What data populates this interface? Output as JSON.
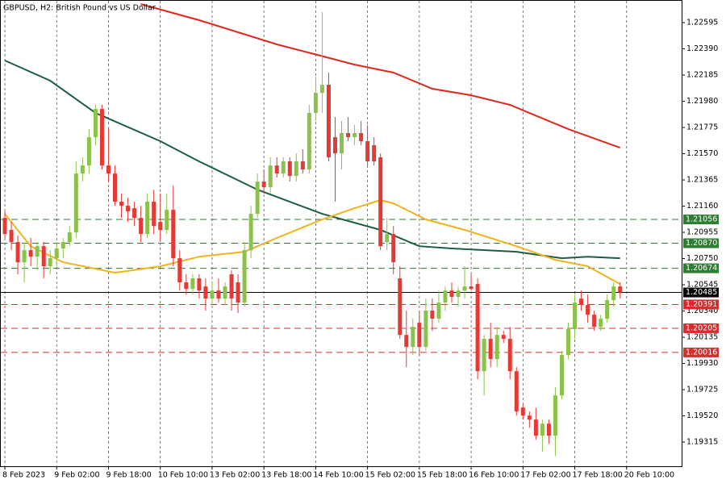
{
  "chart_data": {
    "type": "candlestick",
    "title": "GBPUSD, H2:  British Pound vs US Dollar",
    "ylim": [
      1.19126,
      1.22772
    ],
    "xlim": [
      -0.75,
      104.5
    ],
    "yticks": [
      1.22595,
      {
        "value": 1.2239,
        "label": "1.22390"
      },
      1.22185,
      {
        "value": 1.2198,
        "label": "1.21980"
      },
      1.21775,
      {
        "value": 1.2157,
        "label": "1.21570"
      },
      1.21365,
      {
        "value": 1.2116,
        "label": "1.21160"
      },
      1.20955,
      {
        "value": 1.2075,
        "label": "1.20750"
      },
      1.20545,
      {
        "value": 1.2034,
        "label": "1.20340"
      },
      1.20135,
      {
        "value": 1.1993,
        "label": "1.19930"
      },
      1.19725,
      {
        "value": 1.1952,
        "label": "1.19520"
      },
      1.19315
    ],
    "xticks": [
      {
        "value": 0,
        "label": "8 Feb 2023"
      },
      {
        "value": 8,
        "label": "9 Feb 02:00"
      },
      {
        "value": 16,
        "label": "9 Feb 18:00"
      },
      {
        "value": 24,
        "label": "10 Feb 10:00"
      },
      {
        "value": 32,
        "label": "13 Feb 02:00"
      },
      {
        "value": 40,
        "label": "13 Feb 18:00"
      },
      {
        "value": 48,
        "label": "14 Feb 10:00"
      },
      {
        "value": 56,
        "label": "15 Feb 02:00"
      },
      {
        "value": 64,
        "label": "15 Feb 18:00"
      },
      {
        "value": 72,
        "label": "16 Feb 10:00"
      },
      {
        "value": 80,
        "label": "17 Feb 02:00"
      },
      {
        "value": 88,
        "label": "17 Feb 18:00"
      },
      {
        "value": 96,
        "label": "20 Feb 10:00"
      }
    ],
    "grid": true,
    "up_color": "#8bc34a",
    "down_color": "#e53935",
    "open": [
      1.21068,
      1.20974,
      1.20879,
      1.20721,
      1.20816,
      1.20765,
      1.20847,
      1.2069,
      1.20753,
      1.20829,
      1.20879,
      1.20955,
      1.21415,
      1.21478,
      1.21699,
      1.2192,
      1.21478,
      1.21415,
      1.21195,
      1.21163,
      1.21144,
      1.21068,
      1.20942,
      1.21195,
      1.21037,
      1.20974,
      1.21131,
      1.20753,
      1.20564,
      1.20513,
      1.20595,
      1.20532,
      1.20437,
      1.205,
      1.20437,
      1.20627,
      1.20564,
      1.20406,
      1.20816,
      1.211,
      1.21352,
      1.21308,
      1.21478,
      1.21415,
      1.2151,
      1.21396,
      1.2151,
      1.21447,
      1.21889,
      1.22046,
      1.22109,
      1.21699,
      1.21573,
      1.21731,
      1.21699,
      1.21731,
      1.21668,
      1.21636,
      1.21542,
      1.20879,
      1.20942,
      1.20595,
      1.20153,
      1.20059,
      1.20248,
      1.20059,
      1.20343,
      1.2028,
      1.20406,
      1.205,
      1.2045,
      1.205,
      1.20532,
      1.20551,
      1.19869,
      1.20122,
      1.19964,
      1.20153,
      1.20122,
      1.19869,
      1.19585,
      1.19522,
      1.19491,
      1.19365,
      1.19459,
      1.19365,
      1.1968,
      1.19996,
      1.20198,
      1.20437,
      1.20387,
      1.20311,
      1.20216,
      1.2028,
      1.20425,
      1.20532
    ],
    "high": [
      1.21119,
      1.21037,
      1.2093,
      1.20879,
      1.20911,
      1.20879,
      1.20879,
      1.20816,
      1.20879,
      1.20911,
      1.21005,
      1.2151,
      1.21542,
      1.21762,
      1.21952,
      1.21952,
      1.21762,
      1.21478,
      1.21258,
      1.21226,
      1.21195,
      1.21163,
      1.21258,
      1.21289,
      1.21258,
      1.21258,
      1.21321,
      1.20816,
      1.20627,
      1.20627,
      1.20627,
      1.20595,
      1.20564,
      1.20595,
      1.20564,
      1.20658,
      1.20627,
      1.20879,
      1.21163,
      1.21415,
      1.21447,
      1.21542,
      1.21542,
      1.21542,
      1.21542,
      1.21573,
      1.21605,
      1.21952,
      1.22173,
      1.22677,
      1.22204,
      1.21857,
      1.21826,
      1.21857,
      1.21794,
      1.21826,
      1.21794,
      1.21699,
      1.21573,
      1.21068,
      1.21005,
      1.2069,
      1.20343,
      1.2028,
      1.20343,
      1.20437,
      1.20437,
      1.205,
      1.20532,
      1.20564,
      1.20532,
      1.2069,
      1.20627,
      1.20595,
      1.20153,
      1.20248,
      1.20216,
      1.20185,
      1.20216,
      1.19901,
      1.19617,
      1.19554,
      1.19585,
      1.19491,
      1.19491,
      1.19743,
      1.20027,
      1.20248,
      1.20469,
      1.205,
      1.20469,
      1.20343,
      1.20311,
      1.20469,
      1.20564,
      1.20564
    ],
    "low": [
      1.20911,
      1.20816,
      1.20627,
      1.20564,
      1.2069,
      1.20658,
      1.20595,
      1.20627,
      1.2069,
      1.20753,
      1.20847,
      1.20911,
      1.21352,
      1.21415,
      1.21636,
      1.21447,
      1.21352,
      1.21163,
      1.21068,
      1.21037,
      1.21005,
      1.20879,
      1.20911,
      1.20942,
      1.20879,
      1.20942,
      1.2069,
      1.205,
      1.20469,
      1.20469,
      1.20437,
      1.20343,
      1.20387,
      1.20406,
      1.20387,
      1.20343,
      1.20324,
      1.20374,
      1.20753,
      1.21068,
      1.21258,
      1.21258,
      1.21384,
      1.21384,
      1.21352,
      1.21352,
      1.21415,
      1.21415,
      1.21826,
      1.21889,
      1.2151,
      1.21195,
      1.21447,
      1.21668,
      1.21636,
      1.21636,
      1.21478,
      1.21478,
      1.20816,
      1.20816,
      1.20627,
      1.20122,
      1.19901,
      1.19996,
      1.19996,
      1.20027,
      1.20185,
      1.20248,
      1.20343,
      1.20406,
      1.20374,
      1.20437,
      1.205,
      1.19806,
      1.1968,
      1.19901,
      1.19901,
      1.2009,
      1.19806,
      1.19522,
      1.19491,
      1.19428,
      1.19333,
      1.19238,
      1.19302,
      1.19207,
      1.19649,
      1.19964,
      1.20122,
      1.20343,
      1.20248,
      1.20185,
      1.20185,
      1.20248,
      1.20374,
      1.20437
    ],
    "close": [
      1.20942,
      1.20879,
      1.20721,
      1.20816,
      1.20765,
      1.20847,
      1.2069,
      1.20753,
      1.20829,
      1.20879,
      1.20955,
      1.21415,
      1.21478,
      1.21699,
      1.2192,
      1.21478,
      1.21415,
      1.21195,
      1.21163,
      1.21119,
      1.21068,
      1.20942,
      1.21195,
      1.21005,
      1.20974,
      1.21131,
      1.20753,
      1.20564,
      1.20513,
      1.20595,
      1.205,
      1.20437,
      1.205,
      1.20437,
      1.20532,
      1.20437,
      1.20406,
      1.20816,
      1.211,
      1.21352,
      1.21308,
      1.21478,
      1.21415,
      1.2151,
      1.21396,
      1.2151,
      1.21447,
      1.21889,
      1.22046,
      1.22109,
      1.21542,
      1.21573,
      1.21731,
      1.21699,
      1.21731,
      1.21668,
      1.2151,
      1.2151,
      1.20847,
      1.20942,
      1.20721,
      1.20153,
      1.20059,
      1.20216,
      1.20059,
      1.20343,
      1.2028,
      1.20406,
      1.205,
      1.2045,
      1.205,
      1.20532,
      1.20513,
      1.19869,
      1.20122,
      1.19964,
      1.20153,
      1.20122,
      1.19869,
      1.19554,
      1.19522,
      1.19491,
      1.19365,
      1.19459,
      1.19365,
      1.1968,
      1.19996,
      1.20198,
      1.20406,
      1.20387,
      1.20311,
      1.20216,
      1.2028,
      1.20425,
      1.20532,
      1.20485
    ],
    "series": [
      {
        "color": "#e3261b",
        "x": [
          21,
          30,
          42,
          54,
          60,
          66,
          72,
          78,
          87,
          95
        ],
        "values": [
          1.2274,
          1.22614,
          1.22425,
          1.22267,
          1.22204,
          1.22078,
          1.22027,
          1.21952,
          1.21762,
          1.21617
        ]
      },
      {
        "color": "#1b5e40",
        "x": [
          0,
          7,
          14,
          24,
          30,
          39,
          49,
          58,
          64,
          69,
          79,
          86,
          90,
          95
        ],
        "values": [
          1.22299,
          1.22141,
          1.21889,
          1.21668,
          1.2151,
          1.21289,
          1.211,
          1.20974,
          1.20847,
          1.20829,
          1.20803,
          1.20753,
          1.20765,
          1.20753
        ]
      },
      {
        "color": "#f2b21e",
        "x": [
          0,
          4,
          9,
          17,
          24,
          30,
          37,
          42,
          49,
          54,
          58,
          60,
          65,
          71,
          79,
          85,
          90,
          95
        ],
        "values": [
          1.211,
          1.20847,
          1.20721,
          1.20639,
          1.2069,
          1.20765,
          1.20803,
          1.20911,
          1.21056,
          1.21144,
          1.21207,
          1.21182,
          1.21056,
          1.20974,
          1.20847,
          1.2074,
          1.2069,
          1.20551
        ]
      }
    ],
    "levels": [
      {
        "value": 1.21056,
        "label": "1.21056",
        "color": "#2e7d32",
        "style": "dashed"
      },
      {
        "value": 1.2087,
        "label": "1.20870",
        "color": "#2e7d32",
        "style": "dashed"
      },
      {
        "value": 1.20674,
        "label": "1.20674",
        "color": "#2e7d32",
        "style": "dashed"
      },
      {
        "value": 1.20485,
        "label": "1.20485",
        "color": "#000000",
        "style": "solid"
      },
      {
        "value": 1.20391,
        "label": "1.20391",
        "color": "#d32f2f",
        "style": "dashed"
      },
      {
        "value": 1.20205,
        "label": "1.20205",
        "color": "#d32f2f",
        "style": "dashed"
      },
      {
        "value": 1.20016,
        "label": "1.20016",
        "color": "#d32f2f",
        "style": "dashed"
      }
    ]
  }
}
